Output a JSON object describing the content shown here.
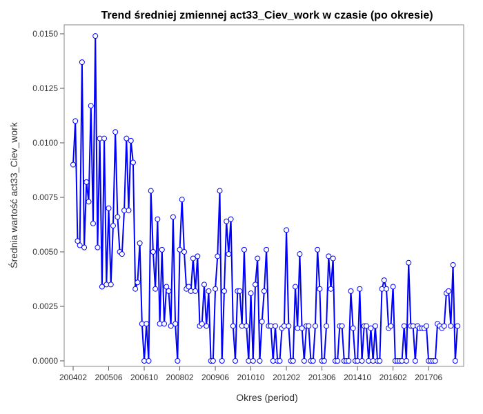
{
  "chart_data": {
    "type": "line",
    "title": "Trend średniej zmiennej act33_Ciev_work w czasie (po okresie)",
    "xlabel": "Okres (period)",
    "ylabel": "Średnia wartość act33_Ciev_work",
    "ylim": [
      0,
      0.0152
    ],
    "y_ticks": [
      "0.0000",
      "0.0025",
      "0.0050",
      "0.0075",
      "0.0100",
      "0.0125",
      "0.0150"
    ],
    "x_ticks": [
      "200402",
      "200506",
      "200610",
      "200802",
      "200906",
      "201010",
      "201202",
      "201306",
      "201410",
      "201602",
      "201706"
    ],
    "grid": false,
    "colors": {
      "line": "#0000ff",
      "marker_fill": "#ffffff"
    },
    "series": [
      {
        "values": [
          0.009,
          0.011,
          0.0055,
          0.0053,
          0.0137,
          0.0052,
          0.0082,
          0.0073,
          0.0117,
          0.0063,
          0.0149,
          0.0052,
          0.0102,
          0.0034,
          0.0102,
          0.0035,
          0.007,
          0.0035,
          0.0062,
          0.0105,
          0.0066,
          0.005,
          0.0049,
          0.0069,
          0.0102,
          0.0069,
          0.0101,
          0.0091,
          0.0033,
          0.0036,
          0.0054,
          0.0017,
          0.0,
          0.0017,
          0.0,
          0.0078,
          0.005,
          0.0033,
          0.0065,
          0.0017,
          0.0051,
          0.0017,
          0.0034,
          0.0032,
          0.0016,
          0.0066,
          0.0017,
          0.0,
          0.0051,
          0.0074,
          0.005,
          0.0033,
          0.0034,
          0.0032,
          0.0047,
          0.0032,
          0.0048,
          0.0016,
          0.0017,
          0.0035,
          0.0016,
          0.0032,
          0.0,
          0.0,
          0.0033,
          0.0048,
          0.0078,
          0.0,
          0.0032,
          0.0064,
          0.0049,
          0.0065,
          0.0016,
          0.0,
          0.0032,
          0.0032,
          0.0016,
          0.0051,
          0.0016,
          0.0,
          0.0031,
          0.0,
          0.0035,
          0.0047,
          0.0,
          0.0018,
          0.0032,
          0.0051,
          0.0016,
          0.0016,
          0.0,
          0.0016,
          0.0,
          0.0,
          0.0015,
          0.0016,
          0.006,
          0.0016,
          0.0,
          0.0,
          0.0034,
          0.0015,
          0.0049,
          0.0015,
          0.0,
          0.0016,
          0.0016,
          0.0,
          0.0,
          0.0016,
          0.0051,
          0.0033,
          0.0,
          0.0,
          0.0016,
          0.0048,
          0.0033,
          0.0047,
          0.0,
          0.0,
          0.0016,
          0.0016,
          0.0,
          0.0,
          0.0,
          0.0032,
          0.0015,
          0.0,
          0.0,
          0.0033,
          0.0,
          0.0016,
          0.0016,
          0.0,
          0.0015,
          0.0,
          0.0016,
          0.0,
          0.0,
          0.0033,
          0.0037,
          0.0033,
          0.0015,
          0.0016,
          0.0034,
          0.0,
          0.0,
          0.0,
          0.0,
          0.0016,
          0.0,
          0.0045,
          0.0016,
          0.0016,
          0.0,
          0.0016,
          0.0015,
          0.0015,
          0.0015,
          0.0016,
          0.0,
          0.0,
          0.0,
          0.0,
          0.0017,
          0.0016,
          0.0015,
          0.0016,
          0.0031,
          0.0032,
          0.0016,
          0.0044,
          0.0,
          0.0016
        ]
      }
    ]
  }
}
